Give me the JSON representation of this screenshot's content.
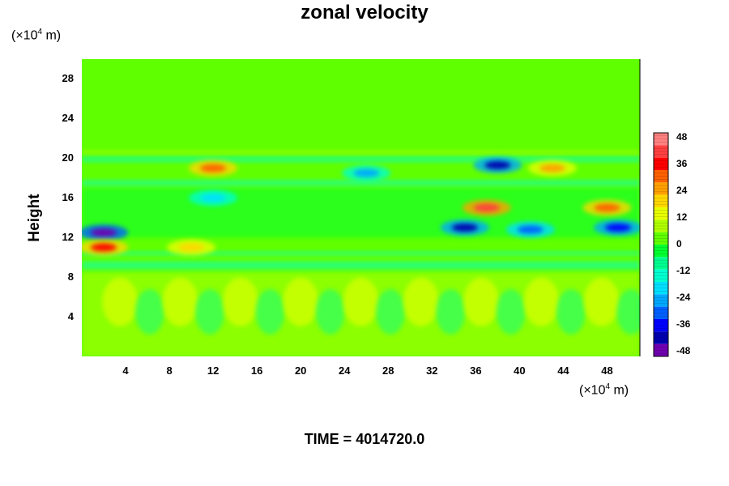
{
  "chart_data": {
    "type": "heatmap",
    "title": "zonal velocity",
    "ylabel": "Height",
    "xlabel": "",
    "y_unit_prefix": "(×10",
    "y_unit_exp": "4",
    "y_unit_suffix": " m)",
    "x_unit_prefix": "(×10",
    "x_unit_exp": "4",
    "x_unit_suffix": " m)",
    "xlim": [
      0,
      51
    ],
    "ylim": [
      0,
      30
    ],
    "xticks": [
      4,
      8,
      12,
      16,
      20,
      24,
      28,
      32,
      36,
      40,
      44,
      48
    ],
    "yticks": [
      4,
      8,
      12,
      16,
      20,
      24,
      28
    ],
    "colorbar": {
      "range": [
        -50,
        50
      ],
      "ticks": [
        48,
        36,
        24,
        12,
        0,
        -12,
        -24,
        -36,
        -48
      ],
      "colors": [
        "#ff8080",
        "#ff4040",
        "#ff0000",
        "#ff6000",
        "#ffa000",
        "#ffd800",
        "#e8ff00",
        "#b0ff00",
        "#60ff00",
        "#00ff30",
        "#00ff90",
        "#00ffd0",
        "#00e0ff",
        "#00a8ff",
        "#0060ff",
        "#0000ff",
        "#0000b0",
        "#7000b0"
      ]
    },
    "features": [
      {
        "x": 2,
        "y": 12.5,
        "value": -48
      },
      {
        "x": 12,
        "y": 19,
        "value": 30
      },
      {
        "x": 2,
        "y": 11,
        "value": 34
      },
      {
        "x": 37,
        "y": 15,
        "value": 40
      },
      {
        "x": 38,
        "y": 19.3,
        "value": -44
      },
      {
        "x": 35,
        "y": 13,
        "value": -40
      },
      {
        "x": 49,
        "y": 13,
        "value": -38
      },
      {
        "x": 48,
        "y": 15,
        "value": 28
      },
      {
        "x": 43,
        "y": 19,
        "value": 26
      },
      {
        "x": 12,
        "y": 16,
        "value": -22
      },
      {
        "x": 26,
        "y": 18.5,
        "value": -26
      },
      {
        "x": 41,
        "y": 12.8,
        "value": -28
      },
      {
        "x": 10,
        "y": 11,
        "value": 20
      }
    ]
  },
  "time_label": "TIME = 4014720.0"
}
